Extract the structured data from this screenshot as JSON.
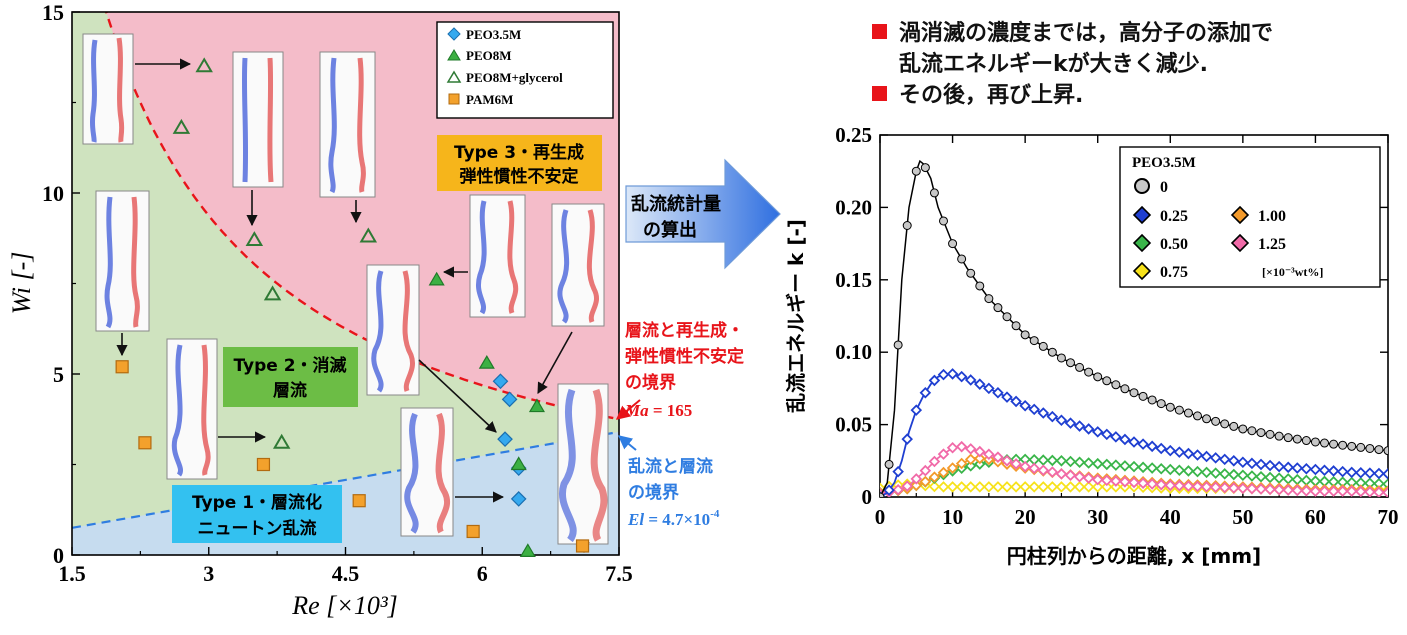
{
  "left_chart": {
    "type": "scatter",
    "xlabel": "Re [×10³]",
    "ylabel": "Wi [-]",
    "xlim": [
      1.5,
      7.5
    ],
    "ylim": [
      0,
      15
    ],
    "x_ticks": [
      "1.5",
      "3",
      "4.5",
      "6",
      "7.5"
    ],
    "y_ticks": [
      "0",
      "5",
      "10",
      "15"
    ],
    "legend": [
      "PEO3.5M",
      "PEO8M",
      "PEO8M+glycerol",
      "PAM6M"
    ],
    "regions": {
      "type3": "Type 3・再生成\n弾性慣性不安定",
      "type2": "Type 2・消滅\n層流",
      "type1": "Type 1・層流化\nニュートン乱流"
    },
    "annotations": {
      "red_boundary": [
        "層流と再生成・",
        "弾性慣性不安定",
        "の境界"
      ],
      "red_ma_var": "Ma",
      "red_ma_val": " = 165",
      "blue_boundary": [
        "乱流と層流",
        "の境界"
      ],
      "blue_el_var": "El",
      "blue_el_val": " = 4.7×10",
      "blue_el_exp": "-4"
    }
  },
  "arrow_text": [
    "乱流統計量",
    "の算出"
  ],
  "bullets": [
    "渦消滅の濃度までは，高分子の添加で",
    "乱流エネルギーkが大きく減少.",
    "その後，再び上昇."
  ],
  "right_chart": {
    "type": "line",
    "xlabel": "円柱列からの距離, x [mm]",
    "ylabel": "乱流エネルギー k [-]",
    "xlim": [
      0,
      70
    ],
    "ylim": [
      0,
      0.25
    ],
    "x_ticks": [
      "0",
      "10",
      "20",
      "30",
      "40",
      "50",
      "60",
      "70"
    ],
    "y_ticks": [
      "0",
      "0.05",
      "0.10",
      "0.15",
      "0.20",
      "0.25"
    ],
    "legend_title": "PEO3.5M",
    "legend_unit": "[×10⁻³wt%]"
  },
  "colors": {
    "type3_bg": "#f4bcc9",
    "type2_bg": "#cfe3bf",
    "type1_bg": "#c6dcef",
    "red_line": "#e8141a",
    "blue_line": "#2f7de1"
  },
  "chart_data": [
    {
      "type": "scatter",
      "xlabel": "Re [×10³]",
      "ylabel": "Wi [-]",
      "xlim": [
        1.5,
        7.5
      ],
      "ylim": [
        0,
        15
      ],
      "series": [
        {
          "name": "PEO3.5M",
          "marker": "diamond",
          "color": "#35a9ef",
          "points": [
            [
              6.2,
              4.8
            ],
            [
              6.3,
              4.3
            ],
            [
              6.25,
              3.2
            ],
            [
              6.4,
              2.4
            ],
            [
              6.4,
              1.55
            ]
          ]
        },
        {
          "name": "PEO8M",
          "marker": "triangle",
          "color": "#3cb043",
          "points": [
            [
              5.5,
              7.6
            ],
            [
              6.05,
              5.3
            ],
            [
              6.4,
              2.5
            ],
            [
              6.5,
              0.1
            ],
            [
              6.6,
              4.1
            ]
          ]
        },
        {
          "name": "PEO8M+glycerol",
          "marker": "triangle-open",
          "color": "#2f7a35",
          "points": [
            [
              2.95,
              13.5
            ],
            [
              2.7,
              11.8
            ],
            [
              3.5,
              8.7
            ],
            [
              3.7,
              7.2
            ],
            [
              4.75,
              8.8
            ],
            [
              3.8,
              3.1
            ]
          ]
        },
        {
          "name": "PAM6M",
          "marker": "square",
          "color": "#f3a12c",
          "points": [
            [
              2.05,
              5.2
            ],
            [
              2.3,
              3.1
            ],
            [
              3.6,
              2.5
            ],
            [
              4.65,
              1.5
            ],
            [
              5.9,
              0.65
            ],
            [
              7.1,
              0.25
            ]
          ]
        }
      ]
    },
    {
      "type": "line",
      "xlabel": "円柱列からの距離, x [mm]",
      "ylabel": "乱流エネルギー k [-]",
      "xlim": [
        0,
        70
      ],
      "ylim": [
        0,
        0.25
      ],
      "series": [
        {
          "name": "0",
          "color": "#c8c8c8",
          "marker": "circle",
          "x": [
            0,
            1,
            2,
            3,
            4,
            5,
            5.5,
            6,
            7,
            8,
            10,
            12,
            15,
            20,
            25,
            30,
            35,
            40,
            45,
            50,
            55,
            60,
            65,
            70
          ],
          "y": [
            0.0,
            0.01,
            0.06,
            0.15,
            0.2,
            0.225,
            0.232,
            0.23,
            0.22,
            0.2,
            0.175,
            0.158,
            0.137,
            0.112,
            0.096,
            0.083,
            0.072,
            0.062,
            0.054,
            0.047,
            0.042,
            0.038,
            0.035,
            0.032
          ]
        },
        {
          "name": "0.25",
          "color": "#1f3fd1",
          "marker": "diamond",
          "x": [
            0,
            1,
            2,
            3,
            4,
            5,
            6,
            7,
            8,
            9,
            10,
            12,
            15,
            20,
            25,
            30,
            35,
            40,
            45,
            50,
            55,
            60,
            65,
            70
          ],
          "y": [
            0.0,
            0.003,
            0.01,
            0.025,
            0.045,
            0.06,
            0.07,
            0.078,
            0.083,
            0.085,
            0.085,
            0.082,
            0.075,
            0.063,
            0.053,
            0.045,
            0.038,
            0.032,
            0.028,
            0.024,
            0.021,
            0.019,
            0.017,
            0.016
          ]
        },
        {
          "name": "0.50",
          "color": "#3ab54a",
          "marker": "diamond",
          "x": [
            0,
            2,
            4,
            6,
            8,
            10,
            12,
            15,
            18,
            20,
            25,
            30,
            35,
            40,
            45,
            50,
            55,
            60,
            65,
            70
          ],
          "y": [
            0.003,
            0.004,
            0.006,
            0.01,
            0.014,
            0.018,
            0.021,
            0.024,
            0.026,
            0.026,
            0.025,
            0.023,
            0.021,
            0.019,
            0.017,
            0.015,
            0.013,
            0.011,
            0.01,
            0.009
          ]
        },
        {
          "name": "0.75",
          "color": "#f7e21b",
          "marker": "diamond",
          "x": [
            0,
            2,
            4,
            6,
            8,
            10,
            15,
            20,
            25,
            30,
            35,
            40,
            45,
            50,
            55,
            60,
            65,
            70
          ],
          "y": [
            0.006,
            0.008,
            0.009,
            0.008,
            0.007,
            0.007,
            0.007,
            0.007,
            0.007,
            0.007,
            0.007,
            0.006,
            0.006,
            0.006,
            0.005,
            0.005,
            0.005,
            0.005
          ]
        },
        {
          "name": "1.00",
          "color": "#f39a2b",
          "marker": "diamond",
          "x": [
            0,
            2,
            4,
            6,
            8,
            10,
            12,
            13,
            15,
            18,
            20,
            25,
            30,
            35,
            40,
            45,
            50,
            55,
            60,
            65,
            70
          ],
          "y": [
            0.003,
            0.004,
            0.006,
            0.01,
            0.015,
            0.02,
            0.025,
            0.027,
            0.026,
            0.022,
            0.02,
            0.016,
            0.013,
            0.011,
            0.009,
            0.008,
            0.007,
            0.006,
            0.005,
            0.005,
            0.004
          ]
        },
        {
          "name": "1.25",
          "color": "#f16aa8",
          "marker": "diamond",
          "x": [
            0,
            2,
            4,
            6,
            8,
            10,
            11,
            12,
            14,
            16,
            18,
            20,
            25,
            30,
            35,
            40,
            45,
            50,
            55,
            60,
            65,
            70
          ],
          "y": [
            0.002,
            0.004,
            0.008,
            0.017,
            0.027,
            0.034,
            0.035,
            0.034,
            0.031,
            0.028,
            0.024,
            0.021,
            0.016,
            0.012,
            0.01,
            0.008,
            0.007,
            0.006,
            0.005,
            0.004,
            0.004,
            0.003
          ]
        }
      ]
    }
  ]
}
